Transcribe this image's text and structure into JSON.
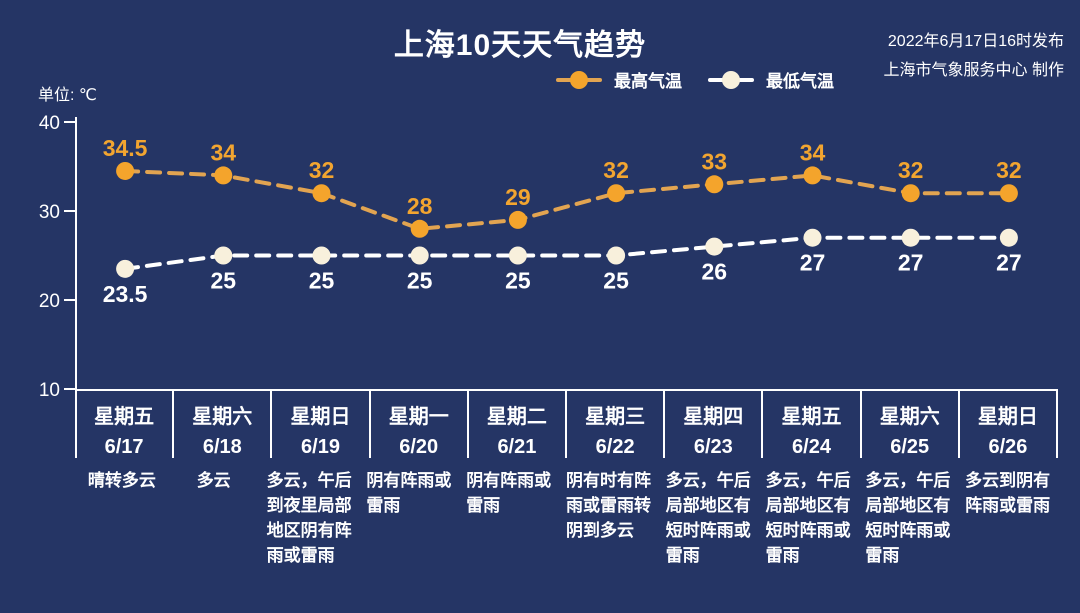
{
  "header": {
    "title": "上海10天天气趋势",
    "release_line1": "2022年6月17日16时发布",
    "release_line2": "上海市气象服务中心 制作"
  },
  "unit_label": "单位: ℃",
  "legend": {
    "high": "最高气温",
    "low": "最低气温"
  },
  "colors": {
    "bg": "#253565",
    "text": "#ffffff",
    "axis": "#ffffff",
    "high-line": "#e2a451",
    "high-dot": "#f4a42c",
    "high-text": "#f2a530",
    "low-line": "#ffffff",
    "low-dot": "#f8f0dc"
  },
  "chart_data": {
    "type": "line",
    "title": "上海10天天气趋势",
    "unit": "℃",
    "ylim": [
      10,
      40
    ],
    "yticks": [
      40,
      30,
      20,
      10
    ],
    "grid": false,
    "line_style": "dashed",
    "legend_position": "top",
    "x": [
      "6/17",
      "6/18",
      "6/19",
      "6/20",
      "6/21",
      "6/22",
      "6/23",
      "6/24",
      "6/25",
      "6/26"
    ],
    "series": [
      {
        "name": "最高气温",
        "values": [
          34.5,
          34,
          32,
          28,
          29,
          32,
          33,
          34,
          32,
          32
        ]
      },
      {
        "name": "最低气温",
        "values": [
          23.5,
          25,
          25,
          25,
          25,
          25,
          26,
          27,
          27,
          27
        ]
      }
    ]
  },
  "days": [
    {
      "weekday": "星期五",
      "date": "6/17",
      "desc": "晴转多云"
    },
    {
      "weekday": "星期六",
      "date": "6/18",
      "desc": "多云"
    },
    {
      "weekday": "星期日",
      "date": "6/19",
      "desc": "多云，午后到夜里局部地区阴有阵雨或雷雨"
    },
    {
      "weekday": "星期一",
      "date": "6/20",
      "desc": "阴有阵雨或雷雨"
    },
    {
      "weekday": "星期二",
      "date": "6/21",
      "desc": "阴有阵雨或雷雨"
    },
    {
      "weekday": "星期三",
      "date": "6/22",
      "desc": "阴有时有阵雨或雷雨转阴到多云"
    },
    {
      "weekday": "星期四",
      "date": "6/23",
      "desc": "多云，午后局部地区有短时阵雨或雷雨"
    },
    {
      "weekday": "星期五",
      "date": "6/24",
      "desc": "多云，午后局部地区有短时阵雨或雷雨"
    },
    {
      "weekday": "星期六",
      "date": "6/25",
      "desc": "多云，午后局部地区有短时阵雨或雷雨"
    },
    {
      "weekday": "星期日",
      "date": "6/26",
      "desc": "多云到阴有阵雨或雷雨"
    }
  ]
}
